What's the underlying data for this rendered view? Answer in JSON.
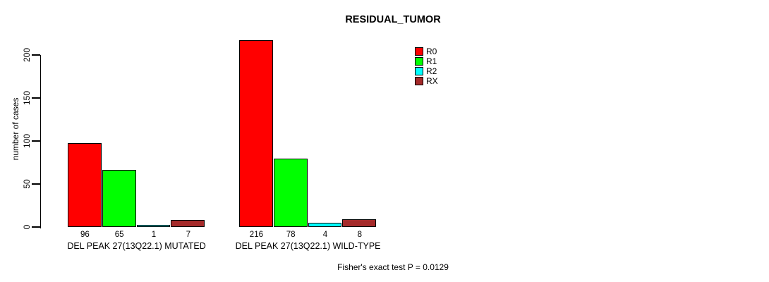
{
  "title": "RESIDUAL_TUMOR",
  "legend": {
    "entries": [
      {
        "label": "R0",
        "color": "#FF0000"
      },
      {
        "label": "R1",
        "color": "#00FF00"
      },
      {
        "label": "R2",
        "color": "#00FFFF"
      },
      {
        "label": "RX",
        "color": "#A52A2A"
      }
    ]
  },
  "chart_data": {
    "type": "bar",
    "title": "RESIDUAL_TUMOR",
    "xlabel": "",
    "ylabel": "number of cases",
    "ylim": [
      0,
      220
    ],
    "yticks": [
      0,
      50,
      100,
      150,
      200
    ],
    "grid": false,
    "legend_position": "top-right",
    "bar_outline_color": "#000000",
    "categories": [
      "DEL PEAK 27(13Q22.1) MUTATED",
      "DEL PEAK 27(13Q22.1) WILD-TYPE"
    ],
    "series": [
      {
        "name": "R0",
        "color": "#FF0000",
        "values": [
          96,
          216
        ]
      },
      {
        "name": "R1",
        "color": "#00FF00",
        "values": [
          65,
          78
        ]
      },
      {
        "name": "R2",
        "color": "#00FFFF",
        "values": [
          1,
          4
        ]
      },
      {
        "name": "RX",
        "color": "#A52A2A",
        "values": [
          7,
          8
        ]
      }
    ],
    "annotation": "Fisher's exact test P = 0.0129"
  }
}
